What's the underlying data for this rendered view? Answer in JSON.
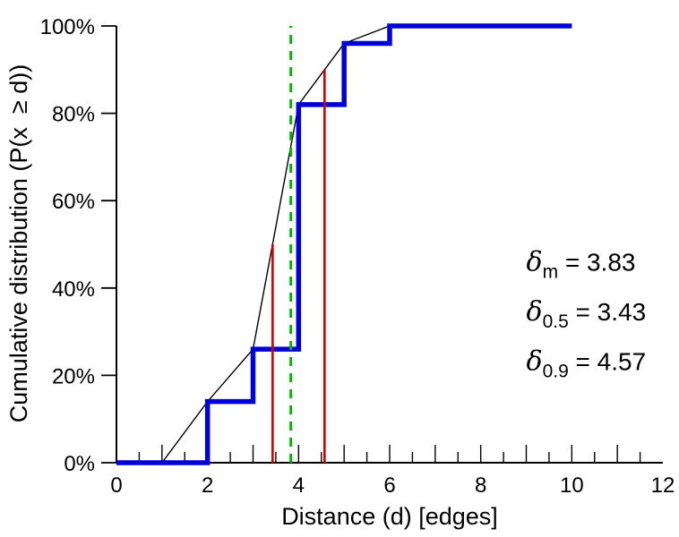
{
  "figure": {
    "background": "#ffffff"
  },
  "chart_data": {
    "type": "line",
    "title": "",
    "xlabel": "Distance (d) [edges]",
    "ylabel": "Cumulative distribution (P(x  ≥ d))",
    "xlim": [
      0,
      12
    ],
    "ylim": [
      0,
      100
    ],
    "grid": false,
    "legend": false,
    "axis_color": "#000000",
    "x_major_ticks": [
      0,
      2,
      4,
      6,
      8,
      10,
      12
    ],
    "x_tick_labels": [
      "0",
      "2",
      "4",
      "6",
      "8",
      "10",
      "12"
    ],
    "x_minor_step": 0.5,
    "y_major_ticks": [
      0,
      20,
      40,
      60,
      80,
      100
    ],
    "y_tick_labels": [
      "0%",
      "20%",
      "40%",
      "60%",
      "80%",
      "100%"
    ],
    "series": [
      {
        "name": "linear-interpolation-line",
        "type": "line",
        "color": "#000000",
        "width": 1.4,
        "points": [
          [
            1,
            0
          ],
          [
            2,
            14
          ],
          [
            3,
            26
          ],
          [
            4,
            82
          ],
          [
            5,
            96
          ],
          [
            6,
            100
          ],
          [
            10,
            100
          ]
        ]
      },
      {
        "name": "empirical-cdf-step",
        "type": "step",
        "color": "#0000d8",
        "width": 5.5,
        "points": [
          [
            0,
            0
          ],
          [
            2,
            0
          ],
          [
            2,
            14
          ],
          [
            3,
            14
          ],
          [
            3,
            26
          ],
          [
            4,
            26
          ],
          [
            4,
            82
          ],
          [
            5,
            82
          ],
          [
            5,
            96
          ],
          [
            6,
            96
          ],
          [
            6,
            100
          ],
          [
            10,
            100
          ]
        ]
      }
    ],
    "vlines": [
      {
        "name": "delta-05-marker-line",
        "x": 3.43,
        "y0": 0,
        "y1": 50,
        "color": "#d40000",
        "width": 2.6,
        "dash": ""
      },
      {
        "name": "delta-09-marker-line",
        "x": 4.57,
        "y0": 0,
        "y1": 90,
        "color": "#d40000",
        "width": 2.6,
        "dash": ""
      },
      {
        "name": "delta-mean-marker-line",
        "x": 3.83,
        "y0": 0,
        "y1": 100,
        "color": "#00b600",
        "width": 3,
        "dash": "10 8"
      }
    ],
    "annotations": [
      {
        "name": "annotation-delta-m",
        "symbol": "δ",
        "subscript": "m",
        "rest": " = 3.83",
        "x": 9.0,
        "y": 44.0
      },
      {
        "name": "annotation-delta-05",
        "symbol": "δ",
        "subscript": "0.5",
        "rest": " = 3.43",
        "x": 9.0,
        "y": 32.6
      },
      {
        "name": "annotation-delta-09",
        "symbol": "δ",
        "subscript": "0.9",
        "rest": " = 4.57",
        "x": 9.0,
        "y": 21.2
      }
    ]
  }
}
